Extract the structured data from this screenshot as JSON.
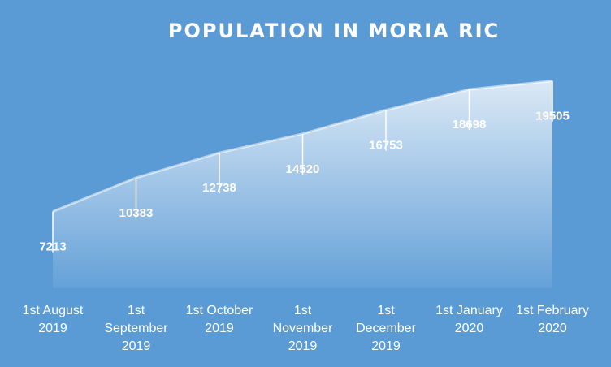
{
  "chart_data": {
    "type": "area",
    "title": "POPULATION IN MORIA RIC",
    "xlabel": "",
    "ylabel": "",
    "categories": [
      [
        "1st August",
        "2019"
      ],
      [
        "1st",
        "September",
        "2019"
      ],
      [
        "1st October",
        "2019"
      ],
      [
        "1st",
        "November",
        "2019"
      ],
      [
        "1st",
        "December",
        "2019"
      ],
      [
        "1st January",
        "2020"
      ],
      [
        "1st February",
        "2020"
      ]
    ],
    "series": [
      {
        "values": [
          7213,
          10383,
          12738,
          14520,
          16753,
          18698,
          19505
        ]
      }
    ],
    "data_labels": true,
    "ylim": [
      0,
      21000
    ],
    "grid": false,
    "colors": {
      "background": "#5b9bd5",
      "area_top": "#dce9f6",
      "line": "#ffffff",
      "text": "#ffffff"
    }
  }
}
